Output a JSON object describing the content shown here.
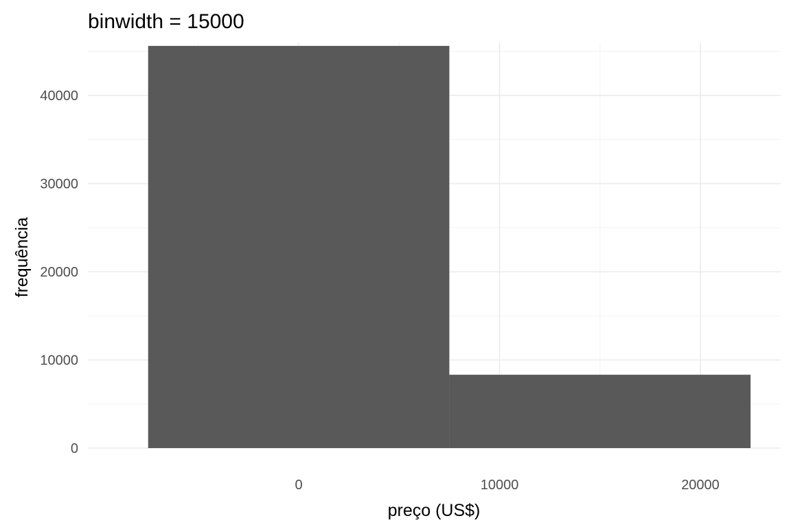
{
  "chart_data": {
    "type": "bar",
    "subtype": "histogram",
    "title": "binwidth = 15000",
    "xlabel": "preço (US$)",
    "ylabel": "frequência",
    "bins": [
      {
        "x_start": -7500,
        "x_end": 7500,
        "count": 45620
      },
      {
        "x_start": 7500,
        "x_end": 22500,
        "count": 8320
      }
    ],
    "xlim": [
      -10500,
      24000
    ],
    "ylim": [
      0,
      46000
    ],
    "x_ticks": [
      0,
      10000,
      20000
    ],
    "x_tick_labels": [
      "0",
      "10000",
      "20000"
    ],
    "y_ticks": [
      0,
      10000,
      20000,
      30000,
      40000
    ],
    "y_tick_labels": [
      "0",
      "10000",
      "20000",
      "30000",
      "40000"
    ],
    "x_minor_ticks": [
      -5000,
      5000,
      15000
    ],
    "y_minor_ticks": [
      5000,
      15000,
      25000,
      35000,
      45000
    ],
    "grid": true,
    "bar_color": "#595959",
    "background": "#ffffff"
  }
}
